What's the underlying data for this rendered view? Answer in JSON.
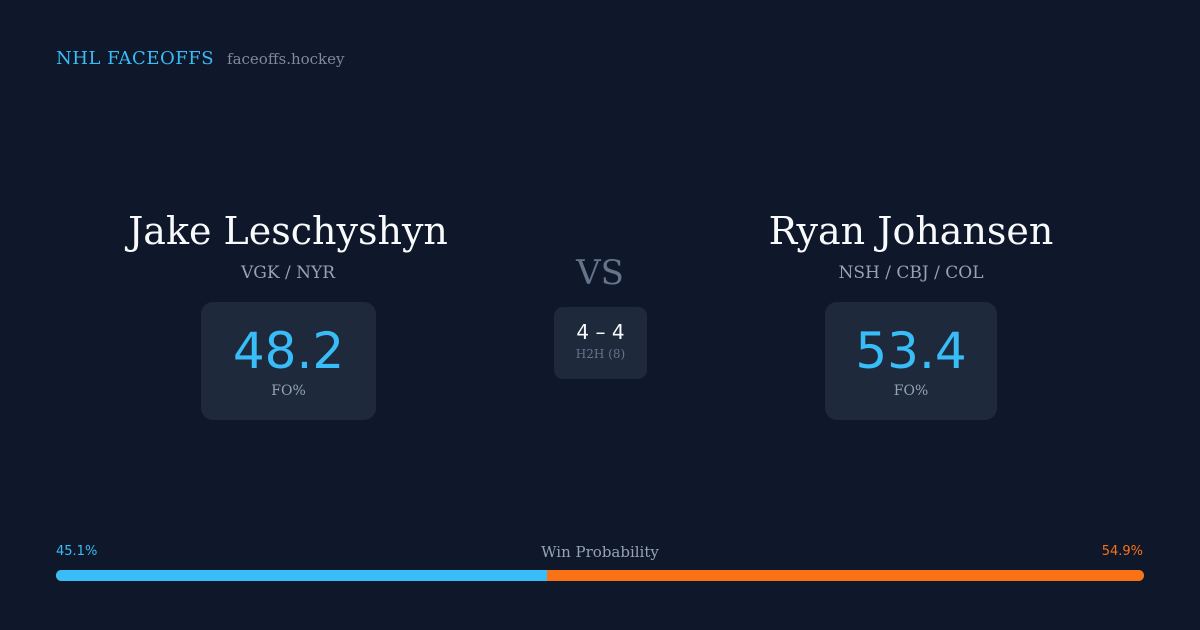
{
  "brand": {
    "name": "NHL FACEOFFS",
    "domain": "faceoffs.hockey"
  },
  "player_left": {
    "name": "Jake Leschyshyn",
    "teams": "VGK / NYR",
    "stat_value": "48.2",
    "stat_label": "FO%"
  },
  "player_right": {
    "name": "Ryan Johansen",
    "teams": "NSH / CBJ / COL",
    "stat_value": "53.4",
    "stat_label": "FO%"
  },
  "matchup": {
    "vs_label": "VS",
    "h2h_score": "4 – 4",
    "h2h_label": "H2H (8)"
  },
  "win_probability": {
    "title": "Win Probability",
    "left_label": "45.1%",
    "right_label": "54.9%",
    "left_value": 45.1,
    "right_value": 54.9,
    "left_color": "#38bdf8",
    "right_color": "#f97316"
  }
}
